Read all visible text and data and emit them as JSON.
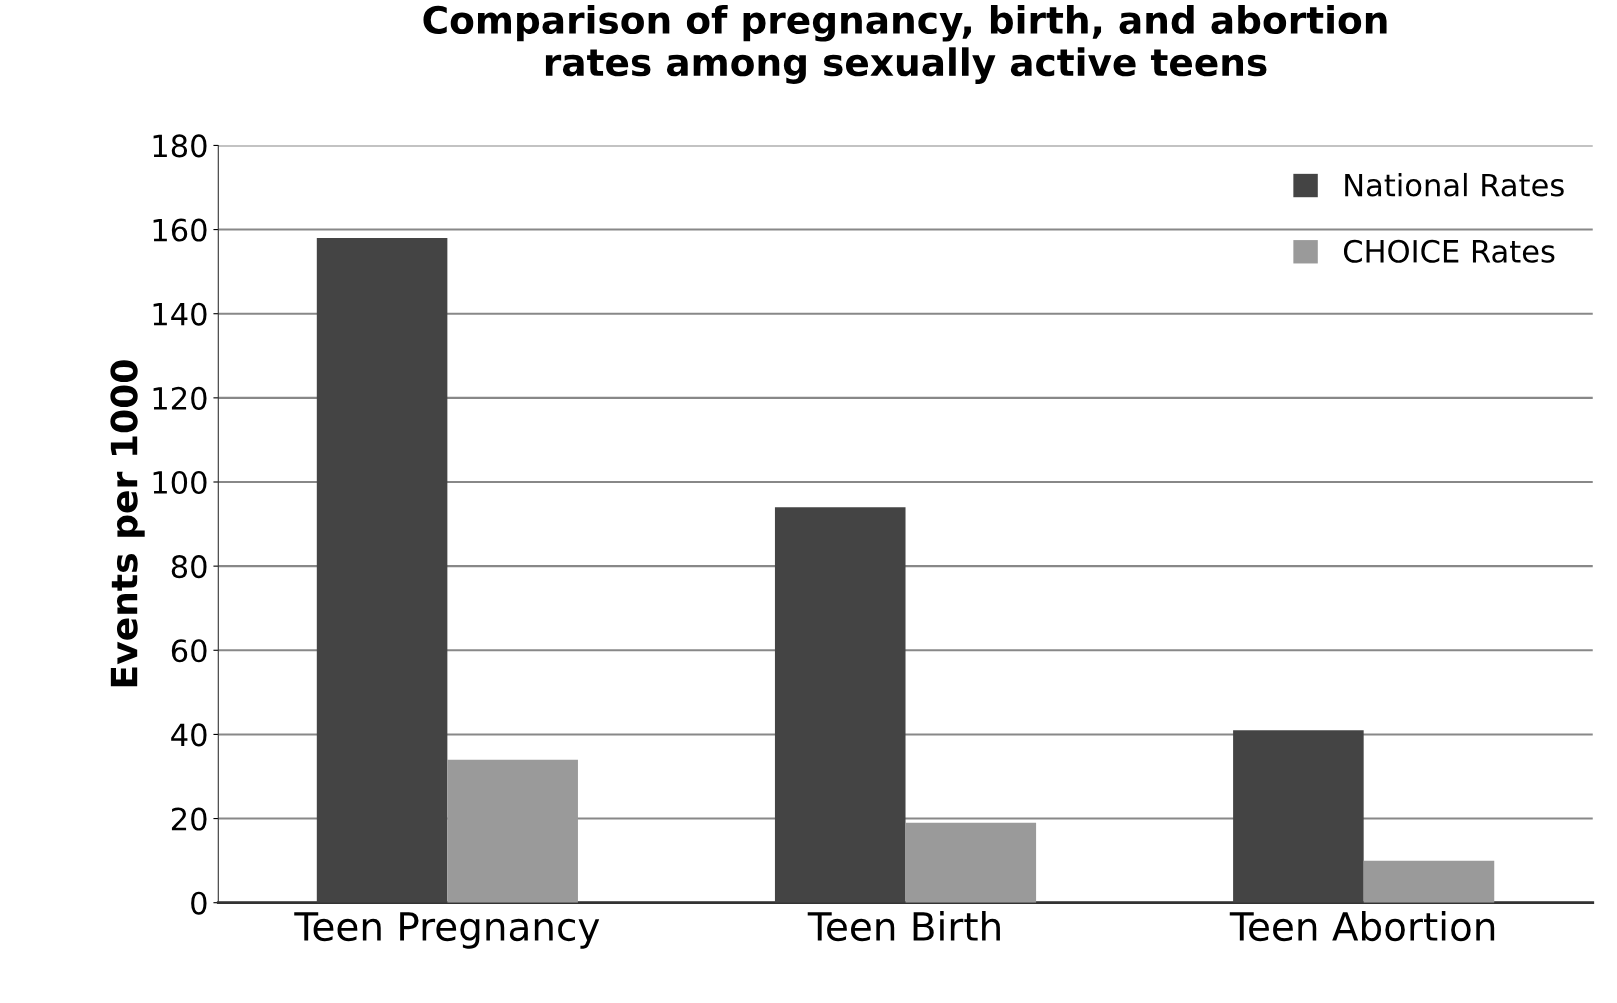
{
  "chart_data": {
    "type": "bar",
    "title": "Comparison of pregnancy, birth, and abortion\nrates among sexually active teens",
    "ylabel": "Events per 1000",
    "categories": [
      "Teen Pregnancy",
      "Teen Birth",
      "Teen Abortion"
    ],
    "series": [
      {
        "name": "National Rates",
        "color": "#444444",
        "values": [
          158,
          94,
          41
        ]
      },
      {
        "name": "CHOICE Rates",
        "color": "#9a9a9a",
        "values": [
          34,
          19,
          10
        ]
      }
    ],
    "ylim": [
      0,
      180
    ],
    "yticks": [
      0,
      20,
      40,
      60,
      80,
      100,
      120,
      140,
      160,
      180
    ],
    "grid": "y",
    "legend": "top right"
  }
}
